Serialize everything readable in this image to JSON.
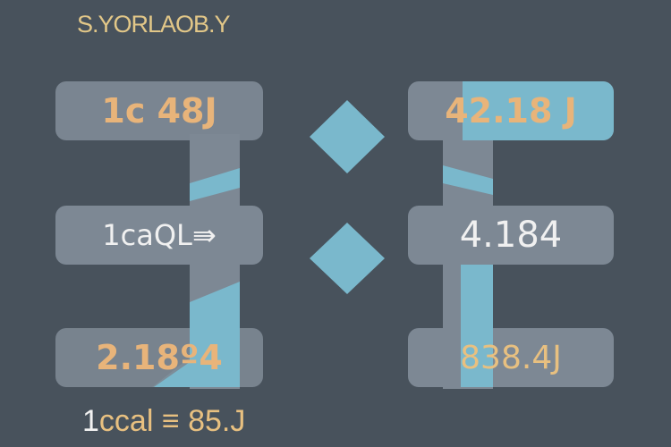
{
  "title": "S.YORLAOB.Y",
  "left_boxes": [
    {
      "text": "1c 48J"
    },
    {
      "text": "1caQL⇛"
    },
    {
      "text": "2.18º4"
    }
  ],
  "right_boxes": [
    {
      "text": "42.18 J"
    },
    {
      "text": "4.184"
    },
    {
      "text": "838.4J"
    }
  ],
  "footer": {
    "one": "1",
    "rest": "ccal ≡ 85.J"
  },
  "colors": {
    "background": "#48525c",
    "box": "#7d8894",
    "orange": "#e8b47a",
    "blue": "#7ab8cc",
    "white": "#f0f0f0"
  }
}
